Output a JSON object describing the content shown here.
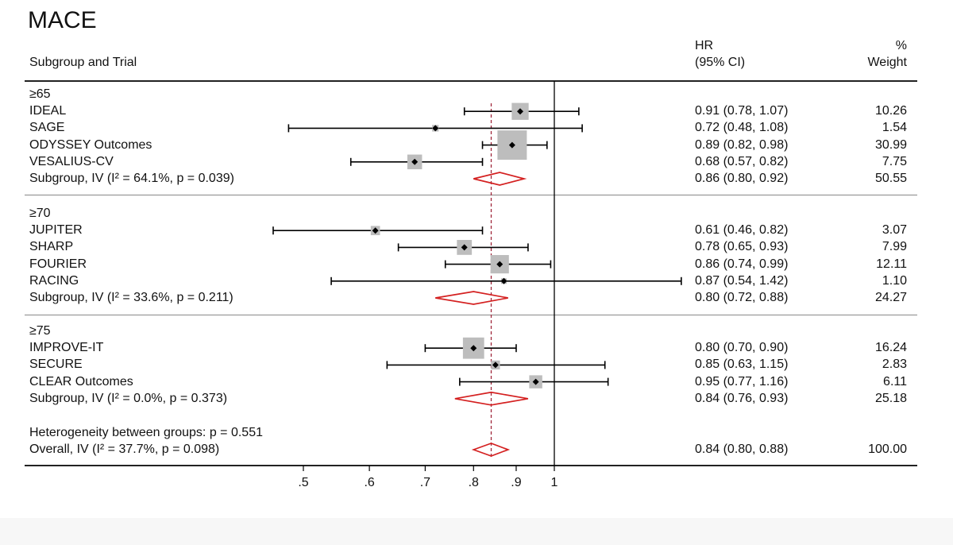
{
  "chart_data": {
    "type": "forest",
    "title": "MACE",
    "xscale": "log",
    "xlim": [
      0.45,
      1.0
    ],
    "xticks": [
      {
        "value": 0.5,
        "label": ".5"
      },
      {
        "value": 0.6,
        "label": ".6"
      },
      {
        "value": 0.7,
        "label": ".7"
      },
      {
        "value": 0.8,
        "label": ".8"
      },
      {
        "value": 0.9,
        "label": ".9"
      },
      {
        "value": 1.0,
        "label": "1"
      }
    ],
    "null_line": 1.0,
    "overall_line": 0.84,
    "header": {
      "label": "Subgroup and Trial",
      "hr_line1": "HR",
      "hr_line2": "(95% CI)",
      "weight_line1": "%",
      "weight_line2": "Weight"
    },
    "groups": [
      {
        "name": "≥65",
        "studies": [
          {
            "label": "IDEAL",
            "hr": 0.91,
            "lo": 0.78,
            "hi": 1.07,
            "ci_text": "0.91 (0.78, 1.07)",
            "weight": 10.26,
            "weight_text": "10.26"
          },
          {
            "label": "SAGE",
            "hr": 0.72,
            "lo": 0.48,
            "hi": 1.08,
            "ci_text": "0.72 (0.48, 1.08)",
            "weight": 1.54,
            "weight_text": "1.54"
          },
          {
            "label": "ODYSSEY Outcomes",
            "hr": 0.89,
            "lo": 0.82,
            "hi": 0.98,
            "ci_text": "0.89 (0.82, 0.98)",
            "weight": 30.99,
            "weight_text": "30.99"
          },
          {
            "label": "VESALIUS-CV",
            "hr": 0.68,
            "lo": 0.57,
            "hi": 0.82,
            "ci_text": "0.68 (0.57, 0.82)",
            "weight": 7.75,
            "weight_text": "7.75"
          }
        ],
        "subtotal": {
          "label": "Subgroup, IV (I² = 64.1%, p = 0.039)",
          "hr": 0.86,
          "lo": 0.8,
          "hi": 0.92,
          "ci_text": "0.86 (0.80, 0.92)",
          "weight_text": "50.55"
        }
      },
      {
        "name": "≥70",
        "studies": [
          {
            "label": "JUPITER",
            "hr": 0.61,
            "lo": 0.46,
            "hi": 0.82,
            "ci_text": "0.61 (0.46, 0.82)",
            "weight": 3.07,
            "weight_text": "3.07"
          },
          {
            "label": "SHARP",
            "hr": 0.78,
            "lo": 0.65,
            "hi": 0.93,
            "ci_text": "0.78 (0.65, 0.93)",
            "weight": 7.99,
            "weight_text": "7.99"
          },
          {
            "label": "FOURIER",
            "hr": 0.86,
            "lo": 0.74,
            "hi": 0.99,
            "ci_text": "0.86 (0.74, 0.99)",
            "weight": 12.11,
            "weight_text": "12.11"
          },
          {
            "label": "RACING",
            "hr": 0.87,
            "lo": 0.54,
            "hi": 1.42,
            "ci_text": "0.87 (0.54, 1.42)",
            "weight": 1.1,
            "weight_text": "1.10"
          }
        ],
        "subtotal": {
          "label": "Subgroup, IV (I² = 33.6%, p = 0.211)",
          "hr": 0.8,
          "lo": 0.72,
          "hi": 0.88,
          "ci_text": "0.80 (0.72, 0.88)",
          "weight_text": "24.27"
        }
      },
      {
        "name": "≥75",
        "studies": [
          {
            "label": "IMPROVE-IT",
            "hr": 0.8,
            "lo": 0.7,
            "hi": 0.9,
            "ci_text": "0.80 (0.70, 0.90)",
            "weight": 16.24,
            "weight_text": "16.24"
          },
          {
            "label": "SECURE",
            "hr": 0.85,
            "lo": 0.63,
            "hi": 1.15,
            "ci_text": "0.85 (0.63, 1.15)",
            "weight": 2.83,
            "weight_text": "2.83"
          },
          {
            "label": "CLEAR Outcomes",
            "hr": 0.95,
            "lo": 0.77,
            "hi": 1.16,
            "ci_text": "0.95 (0.77, 1.16)",
            "weight": 6.11,
            "weight_text": "6.11"
          }
        ],
        "subtotal": {
          "label": "Subgroup, IV (I² = 0.0%, p = 0.373)",
          "hr": 0.84,
          "lo": 0.76,
          "hi": 0.93,
          "ci_text": "0.84 (0.76, 0.93)",
          "weight_text": "25.18"
        }
      }
    ],
    "heterogeneity": "Heterogeneity between groups: p = 0.551",
    "overall": {
      "label": "Overall, IV (I² = 37.7%, p = 0.098)",
      "hr": 0.84,
      "lo": 0.8,
      "hi": 0.88,
      "ci_text": "0.84 (0.80, 0.88)",
      "weight_text": "100.00"
    },
    "colors": {
      "box": "#bdbdbd",
      "point": "#000000",
      "ci_line": "#000000",
      "diamond": "#d42020",
      "overall_line": "#a0283c",
      "axis": "#000000"
    }
  }
}
